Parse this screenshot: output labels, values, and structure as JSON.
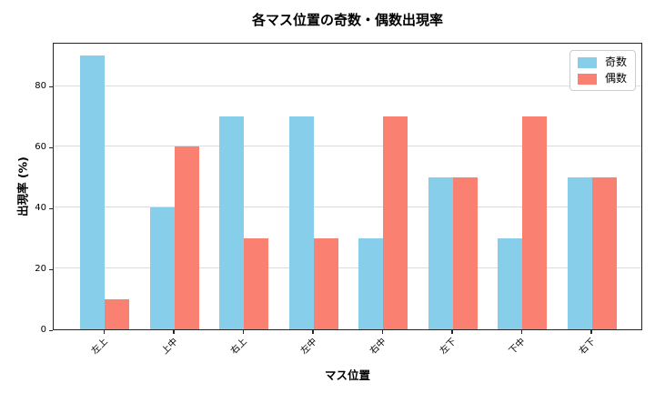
{
  "title": "各マス位置の奇数・偶数出現率",
  "chart_data": {
    "type": "bar",
    "categories": [
      "左上",
      "上中",
      "右上",
      "左中",
      "右中",
      "左下",
      "下中",
      "右下"
    ],
    "series": [
      {
        "name": "奇数",
        "color": "#87CEEB",
        "values": [
          90,
          40,
          70,
          70,
          30,
          50,
          30,
          50
        ]
      },
      {
        "name": "偶数",
        "color": "#FA8072",
        "values": [
          10,
          60,
          30,
          30,
          70,
          50,
          70,
          50
        ]
      }
    ],
    "title": "各マス位置の奇数・偶数出現率",
    "xlabel": "マス位置",
    "ylabel": "出現率 (%)",
    "yticks": [
      0,
      20,
      40,
      60,
      80
    ],
    "ylim": [
      0,
      94.5
    ],
    "grid": true,
    "legend_position": "upper right",
    "x_tick_rotation": 45
  },
  "colors": {
    "odd": "#87CEEB",
    "even": "#FA8072",
    "gridline": "#dcdcdc",
    "axis": "#262626",
    "legend_border": "#cccccc",
    "background": "#ffffff"
  }
}
